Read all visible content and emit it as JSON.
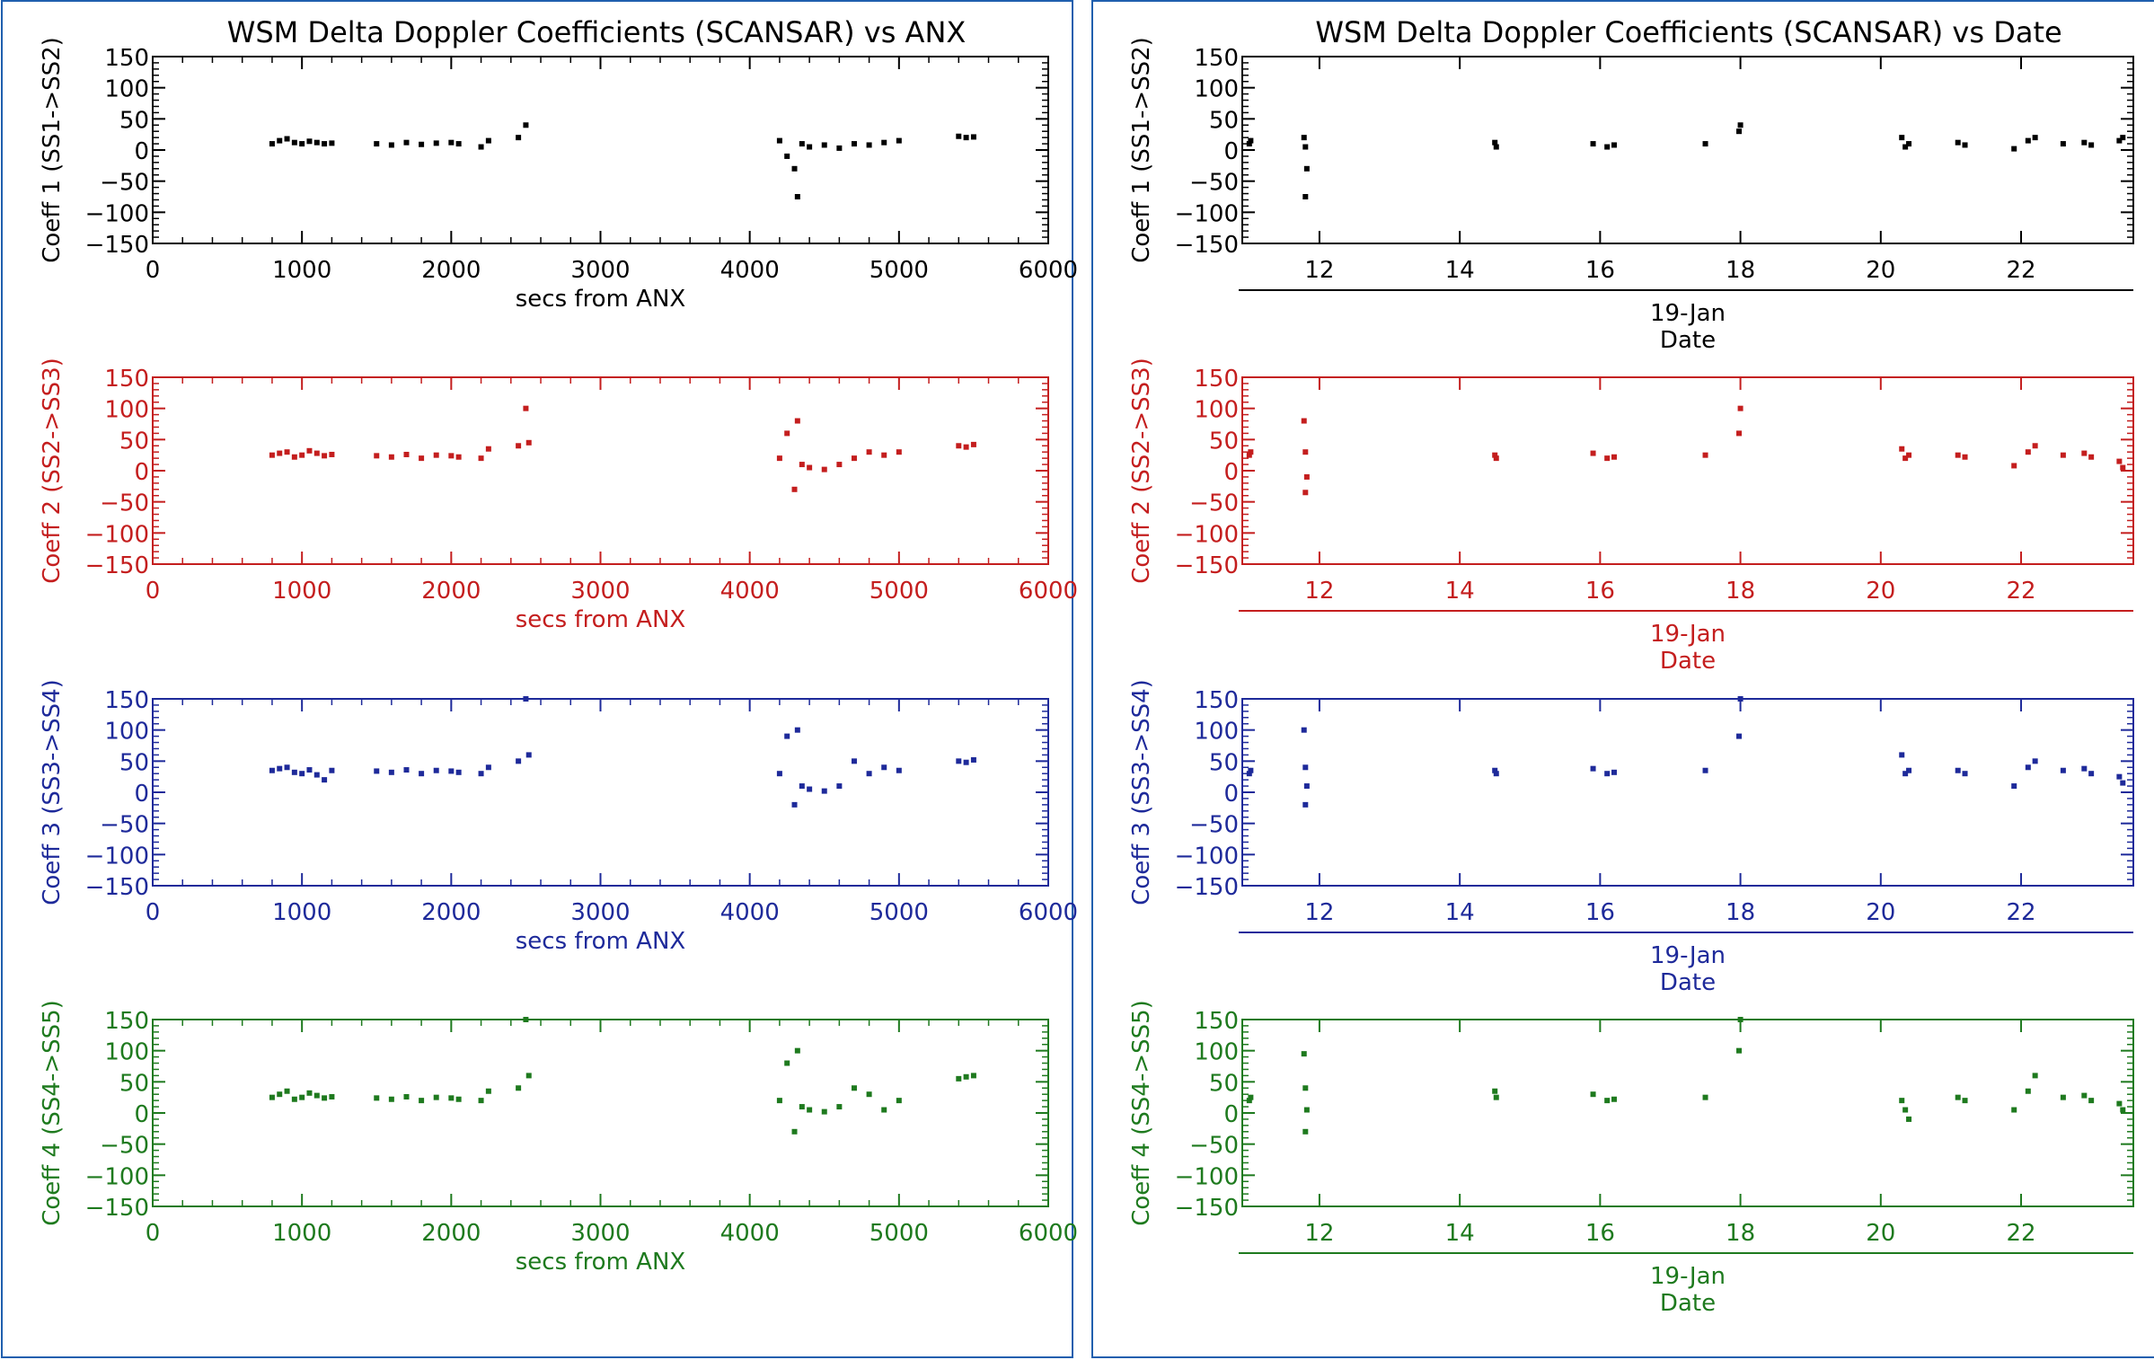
{
  "panels": [
    {
      "title": "WSM Delta Doppler Coefficients (SCANSAR) vs ANX",
      "x_axis_label": "secs from ANX",
      "x_ticks": [
        "0",
        "1000",
        "2000",
        "3000",
        "4000",
        "5000",
        "6000"
      ]
    },
    {
      "title": "WSM Delta Doppler Coefficients (SCANSAR) vs Date",
      "x_axis_label": "19-Jan",
      "x_axis_sublabel": "Date",
      "x_ticks": [
        "12",
        "14",
        "16",
        "18",
        "20",
        "22"
      ]
    }
  ],
  "y_ticks": [
    "150",
    "100",
    "50",
    "0",
    "-50",
    "-100",
    "-150"
  ],
  "colors": {
    "coeff1": "#000000",
    "coeff2": "#c41e1e",
    "coeff3": "#1e2a9a",
    "coeff4": "#1e7a1e",
    "frame": "#1f5fae"
  },
  "chart_data": [
    {
      "type": "scatter",
      "title": "WSM Delta Doppler Coefficients (SCANSAR) vs ANX",
      "xlabel": "secs from ANX",
      "xlim": [
        0,
        6000
      ],
      "ylim": [
        -150,
        150
      ],
      "series": [
        {
          "name": "Coeff 1 (SS1->SS2)",
          "color": "#000000",
          "x": [
            800,
            850,
            900,
            950,
            1000,
            1050,
            1100,
            1150,
            1200,
            1500,
            1600,
            1700,
            1800,
            1900,
            2000,
            2050,
            2200,
            2250,
            2450,
            2500,
            4200,
            4250,
            4300,
            4320,
            4350,
            4400,
            4500,
            4600,
            4700,
            4800,
            4900,
            5000,
            5400,
            5450,
            5500
          ],
          "y": [
            10,
            15,
            18,
            12,
            10,
            14,
            12,
            10,
            11,
            10,
            8,
            12,
            9,
            11,
            12,
            10,
            5,
            15,
            20,
            40,
            15,
            -10,
            -30,
            -75,
            10,
            5,
            8,
            3,
            10,
            8,
            12,
            15,
            22,
            20,
            21
          ]
        },
        {
          "name": "Coeff 2 (SS2->SS3)",
          "color": "#c41e1e",
          "x": [
            800,
            850,
            900,
            950,
            1000,
            1050,
            1100,
            1150,
            1200,
            1500,
            1600,
            1700,
            1800,
            1900,
            2000,
            2050,
            2200,
            2250,
            2450,
            2500,
            2520,
            4200,
            4250,
            4300,
            4320,
            4350,
            4400,
            4500,
            4600,
            4700,
            4800,
            4900,
            5000,
            5400,
            5450,
            5500
          ],
          "y": [
            25,
            28,
            30,
            22,
            25,
            32,
            28,
            24,
            26,
            24,
            22,
            26,
            20,
            25,
            24,
            22,
            20,
            35,
            40,
            100,
            45,
            20,
            60,
            -30,
            80,
            10,
            5,
            2,
            10,
            20,
            30,
            25,
            30,
            40,
            38,
            42
          ]
        },
        {
          "name": "Coeff 3 (SS3->SS4)",
          "color": "#1e2a9a",
          "x": [
            800,
            850,
            900,
            950,
            1000,
            1050,
            1100,
            1150,
            1200,
            1500,
            1600,
            1700,
            1800,
            1900,
            2000,
            2050,
            2200,
            2250,
            2450,
            2500,
            2520,
            4200,
            4250,
            4300,
            4320,
            4350,
            4400,
            4500,
            4600,
            4700,
            4800,
            4900,
            5000,
            5400,
            5450,
            5500
          ],
          "y": [
            35,
            38,
            40,
            32,
            30,
            36,
            28,
            20,
            35,
            34,
            32,
            36,
            30,
            35,
            34,
            32,
            30,
            40,
            50,
            150,
            60,
            30,
            90,
            -20,
            100,
            10,
            5,
            2,
            10,
            50,
            30,
            40,
            35,
            50,
            48,
            52
          ]
        },
        {
          "name": "Coeff 4 (SS4->SS5)",
          "color": "#1e7a1e",
          "x": [
            800,
            850,
            900,
            950,
            1000,
            1050,
            1100,
            1150,
            1200,
            1500,
            1600,
            1700,
            1800,
            1900,
            2000,
            2050,
            2200,
            2250,
            2450,
            2500,
            2520,
            4200,
            4250,
            4300,
            4320,
            4350,
            4400,
            4500,
            4600,
            4700,
            4800,
            4900,
            5000,
            5400,
            5450,
            5500
          ],
          "y": [
            25,
            30,
            35,
            22,
            25,
            32,
            28,
            24,
            26,
            24,
            22,
            26,
            20,
            25,
            24,
            22,
            20,
            35,
            40,
            150,
            60,
            20,
            80,
            -30,
            100,
            10,
            5,
            2,
            10,
            40,
            30,
            5,
            20,
            55,
            58,
            60
          ]
        }
      ]
    },
    {
      "type": "scatter",
      "title": "WSM Delta Doppler Coefficients (SCANSAR) vs Date",
      "xlabel": "19-Jan",
      "xlabel2": "Date",
      "xlim": [
        10.9,
        23.6
      ],
      "ylim": [
        -150,
        150
      ],
      "series": [
        {
          "name": "Coeff 1 (SS1->SS2)",
          "color": "#000000",
          "x": [
            11.0,
            11.02,
            11.78,
            11.8,
            11.82,
            11.8,
            14.5,
            14.52,
            15.9,
            16.1,
            16.2,
            17.5,
            17.98,
            18.0,
            20.3,
            20.35,
            20.4,
            21.1,
            21.2,
            21.9,
            22.1,
            22.2,
            22.6,
            22.9,
            23.0,
            23.4,
            23.45
          ],
          "y": [
            10,
            15,
            20,
            5,
            -30,
            -75,
            12,
            5,
            10,
            5,
            8,
            10,
            30,
            40,
            20,
            5,
            10,
            12,
            8,
            2,
            15,
            20,
            10,
            12,
            8,
            15,
            20
          ]
        },
        {
          "name": "Coeff 2 (SS2->SS3)",
          "color": "#c41e1e",
          "x": [
            11.0,
            11.02,
            11.78,
            11.8,
            11.82,
            11.8,
            14.5,
            14.52,
            15.9,
            16.1,
            16.2,
            17.5,
            17.98,
            18.0,
            20.3,
            20.35,
            20.4,
            21.1,
            21.2,
            21.9,
            22.1,
            22.2,
            22.6,
            22.9,
            23.0,
            23.4,
            23.45
          ],
          "y": [
            25,
            30,
            80,
            30,
            -10,
            -35,
            25,
            20,
            28,
            20,
            22,
            25,
            60,
            100,
            35,
            20,
            25,
            25,
            22,
            8,
            30,
            40,
            25,
            28,
            22,
            15,
            5
          ]
        },
        {
          "name": "Coeff 3 (SS3->SS4)",
          "color": "#1e2a9a",
          "x": [
            11.0,
            11.02,
            11.78,
            11.8,
            11.82,
            11.8,
            14.5,
            14.52,
            15.9,
            16.1,
            16.2,
            17.5,
            17.98,
            18.0,
            20.3,
            20.35,
            20.4,
            21.1,
            21.2,
            21.9,
            22.1,
            22.2,
            22.6,
            22.9,
            23.0,
            23.4,
            23.45
          ],
          "y": [
            30,
            35,
            100,
            40,
            10,
            -20,
            35,
            30,
            38,
            30,
            32,
            35,
            90,
            150,
            60,
            30,
            35,
            35,
            30,
            10,
            40,
            50,
            35,
            38,
            30,
            25,
            15
          ]
        },
        {
          "name": "Coeff 4 (SS4->SS5)",
          "color": "#1e7a1e",
          "x": [
            11.0,
            11.02,
            11.78,
            11.8,
            11.82,
            11.8,
            14.5,
            14.52,
            15.9,
            16.1,
            16.2,
            17.5,
            17.98,
            18.0,
            20.3,
            20.35,
            20.4,
            21.1,
            21.2,
            21.9,
            22.1,
            22.2,
            22.6,
            22.9,
            23.0,
            23.4,
            23.45
          ],
          "y": [
            20,
            25,
            95,
            40,
            5,
            -30,
            35,
            25,
            30,
            20,
            22,
            25,
            100,
            150,
            20,
            5,
            -10,
            25,
            20,
            5,
            35,
            60,
            25,
            28,
            20,
            15,
            5
          ]
        }
      ]
    }
  ]
}
